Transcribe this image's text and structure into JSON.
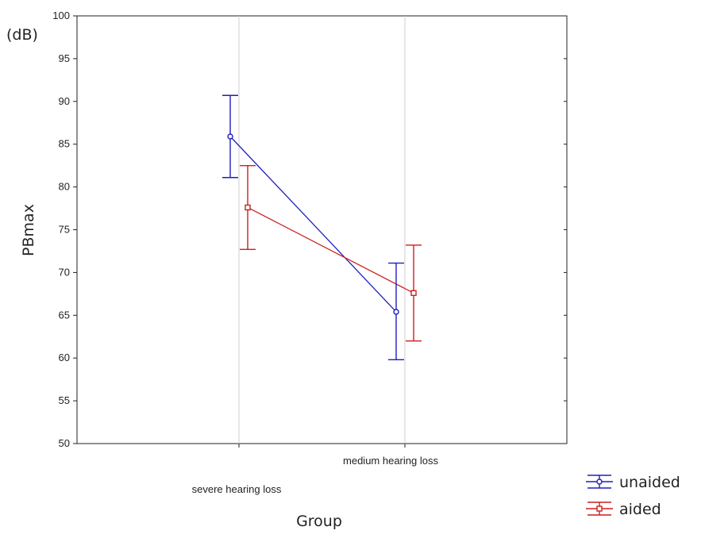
{
  "chart_data": {
    "type": "line",
    "title": "",
    "xlabel": "Group",
    "ylabel": "PBmax",
    "unit": "(dB)",
    "ylim": [
      50,
      100
    ],
    "yticks": [
      50,
      55,
      60,
      65,
      70,
      75,
      80,
      85,
      90,
      95,
      100
    ],
    "categories": [
      "severe hearing loss",
      "medium hearing loss"
    ],
    "grid": true,
    "legend_position": "bottom-right",
    "series": [
      {
        "name": "unaided",
        "color": "#1f1fbf",
        "marker": "circle",
        "values": [
          85.9,
          65.4
        ],
        "lower": [
          81.1,
          59.8
        ],
        "upper": [
          90.7,
          71.1
        ]
      },
      {
        "name": "aided",
        "color": "#cc1f1f",
        "marker": "square",
        "values": [
          77.6,
          67.6
        ],
        "lower": [
          72.7,
          62.0
        ],
        "upper": [
          82.5,
          73.2
        ]
      }
    ]
  }
}
